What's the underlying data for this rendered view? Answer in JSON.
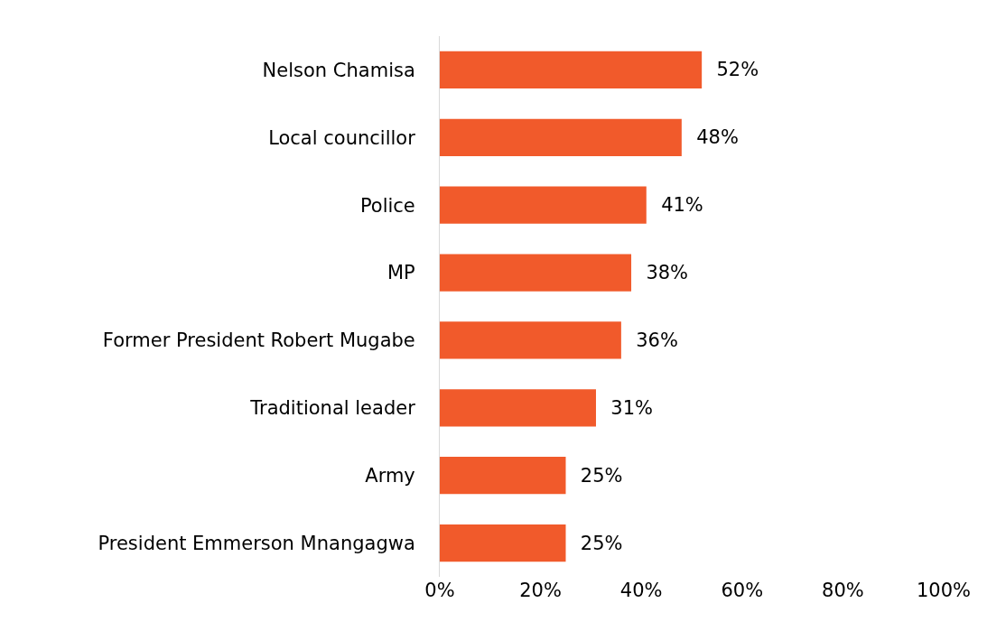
{
  "chart_data": {
    "type": "bar",
    "orientation": "horizontal",
    "categories": [
      "Nelson Chamisa",
      "Local councillor",
      "Police",
      "MP",
      "Former President Robert Mugabe",
      "Traditional leader",
      "Army",
      "President Emmerson Mnangagwa"
    ],
    "values": [
      52,
      48,
      41,
      38,
      36,
      31,
      25,
      25
    ],
    "value_labels": [
      "52%",
      "48%",
      "41%",
      "38%",
      "36%",
      "31%",
      "25%",
      "25%"
    ],
    "color": "#f15a2b",
    "xlim": [
      0,
      100
    ],
    "xticks": [
      {
        "value": 0,
        "label": "0%"
      },
      {
        "value": 20,
        "label": "20%"
      },
      {
        "value": 40,
        "label": "40%"
      },
      {
        "value": 60,
        "label": "60%"
      },
      {
        "value": 80,
        "label": "80%"
      },
      {
        "value": 100,
        "label": "100%"
      }
    ],
    "grid": false
  }
}
